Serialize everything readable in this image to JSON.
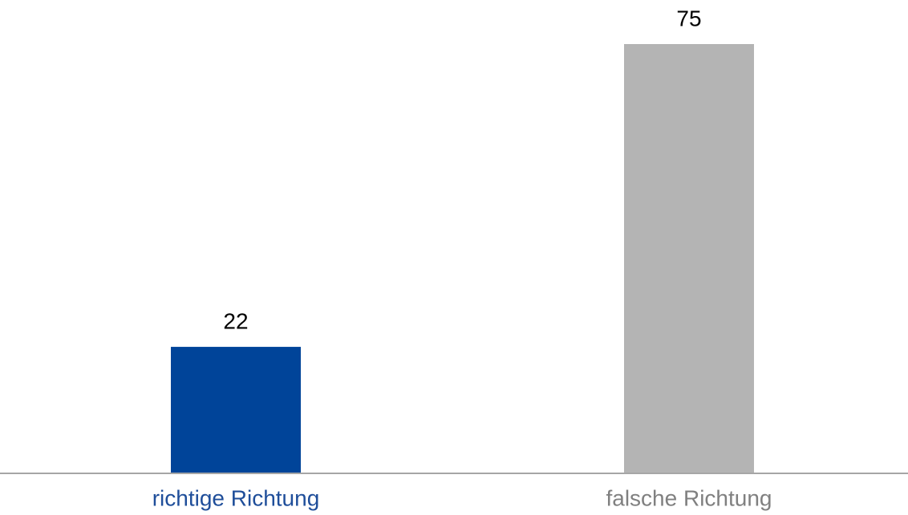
{
  "chart_data": {
    "type": "bar",
    "categories": [
      "richtige Richtung",
      "falsche Richtung"
    ],
    "values": [
      22,
      75
    ],
    "colors": [
      "#004499",
      "#b4b4b4"
    ],
    "label_colors": [
      "#1f4e9a",
      "#808080"
    ],
    "axis_color": "#a6a6a6"
  }
}
